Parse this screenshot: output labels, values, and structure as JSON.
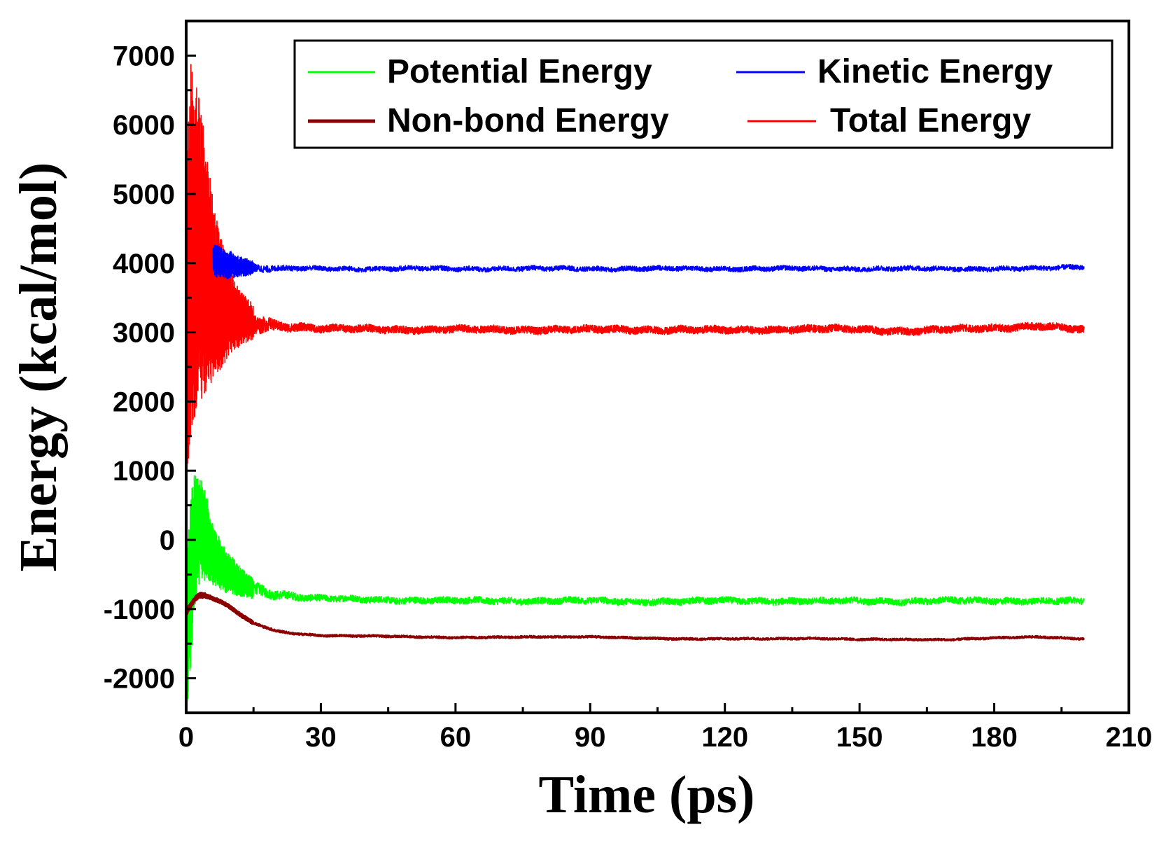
{
  "chart_data": {
    "type": "line",
    "title": "",
    "xlabel": "Time (ps)",
    "ylabel": "Energy (kcal/mol)",
    "xlim": [
      0,
      210
    ],
    "ylim": [
      -2500,
      7500
    ],
    "x_ticks": [
      0,
      30,
      60,
      90,
      120,
      150,
      180,
      210
    ],
    "y_ticks": [
      -2000,
      -1000,
      0,
      1000,
      2000,
      3000,
      4000,
      5000,
      6000,
      7000
    ],
    "x_tick_labels": [
      "0",
      "30",
      "60",
      "90",
      "120",
      "150",
      "180",
      "210"
    ],
    "y_tick_labels": [
      "-2000",
      "-1000",
      "0",
      "1000",
      "2000",
      "3000",
      "4000",
      "5000",
      "6000",
      "7000"
    ],
    "grid": false,
    "legend_position": "top-right",
    "series": [
      {
        "name": "Potential Energy",
        "color": "#00ff00",
        "x": [
          0,
          1,
          2,
          3,
          4,
          5,
          6,
          8,
          10,
          12,
          15,
          20,
          25,
          30,
          40,
          50,
          60,
          70,
          80,
          90,
          100,
          110,
          120,
          130,
          140,
          150,
          160,
          170,
          180,
          190,
          200
        ],
        "y": [
          -1500,
          -600,
          0,
          200,
          100,
          -50,
          -200,
          -400,
          -500,
          -600,
          -700,
          -780,
          -820,
          -850,
          -860,
          -870,
          -880,
          -880,
          -880,
          -880,
          -890,
          -890,
          -880,
          -880,
          -890,
          -880,
          -890,
          -880,
          -880,
          -880,
          -890
        ],
        "amplitude": [
          1100,
          1300,
          1000,
          800,
          700,
          550,
          450,
          350,
          280,
          220,
          150,
          110,
          90,
          80,
          80,
          80,
          80,
          80,
          80,
          80,
          80,
          80,
          80,
          80,
          80,
          80,
          80,
          80,
          80,
          80,
          80
        ]
      },
      {
        "name": "Kinetic Energy",
        "color": "#0000ff",
        "x": [
          6,
          8,
          10,
          12,
          15,
          20,
          25,
          30,
          40,
          50,
          60,
          70,
          80,
          90,
          100,
          110,
          120,
          130,
          140,
          150,
          160,
          170,
          180,
          190,
          200
        ],
        "y": [
          4050,
          4000,
          3970,
          3950,
          3930,
          3920,
          3920,
          3920,
          3920,
          3920,
          3920,
          3920,
          3920,
          3920,
          3920,
          3920,
          3920,
          3920,
          3920,
          3920,
          3920,
          3920,
          3920,
          3920,
          3950
        ],
        "amplitude": [
          250,
          220,
          200,
          150,
          100,
          70,
          60,
          60,
          60,
          60,
          60,
          60,
          60,
          60,
          60,
          60,
          60,
          60,
          60,
          60,
          60,
          60,
          60,
          60,
          60
        ]
      },
      {
        "name": "Non-bond Energy",
        "color": "#8b0000",
        "x": [
          0,
          1,
          2,
          3,
          4,
          5,
          6,
          8,
          10,
          12,
          15,
          20,
          25,
          30,
          40,
          50,
          60,
          70,
          80,
          90,
          100,
          110,
          120,
          130,
          140,
          150,
          160,
          170,
          180,
          190,
          200
        ],
        "y": [
          -1050,
          -950,
          -850,
          -800,
          -800,
          -820,
          -850,
          -900,
          -980,
          -1080,
          -1200,
          -1320,
          -1360,
          -1380,
          -1390,
          -1400,
          -1410,
          -1410,
          -1400,
          -1400,
          -1420,
          -1430,
          -1430,
          -1430,
          -1420,
          -1440,
          -1440,
          -1440,
          -1420,
          -1400,
          -1430
        ],
        "amplitude": [
          60,
          50,
          40,
          40,
          40,
          30,
          30,
          30,
          30,
          30,
          30,
          30,
          25,
          25,
          25,
          25,
          25,
          25,
          25,
          25,
          25,
          25,
          25,
          25,
          25,
          25,
          25,
          25,
          25,
          25,
          25
        ]
      },
      {
        "name": "Total Energy",
        "color": "#ff0000",
        "x": [
          0,
          0.5,
          1,
          2,
          3,
          4,
          5,
          6,
          8,
          10,
          12,
          15,
          20,
          25,
          30,
          40,
          50,
          60,
          70,
          80,
          90,
          100,
          110,
          120,
          130,
          140,
          150,
          160,
          170,
          180,
          190,
          200
        ],
        "y": [
          1000,
          3500,
          4200,
          4300,
          4200,
          4000,
          3800,
          3600,
          3400,
          3300,
          3200,
          3150,
          3100,
          3080,
          3050,
          3050,
          3040,
          3040,
          3040,
          3040,
          3040,
          3040,
          3040,
          3030,
          3040,
          3050,
          3040,
          3020,
          3040,
          3060,
          3100,
          3030
        ],
        "amplitude": [
          600,
          2500,
          2700,
          2500,
          2200,
          1900,
          1600,
          1300,
          900,
          600,
          400,
          250,
          120,
          100,
          90,
          90,
          90,
          90,
          90,
          90,
          90,
          90,
          90,
          90,
          90,
          90,
          90,
          90,
          90,
          90,
          90,
          90
        ]
      }
    ]
  }
}
